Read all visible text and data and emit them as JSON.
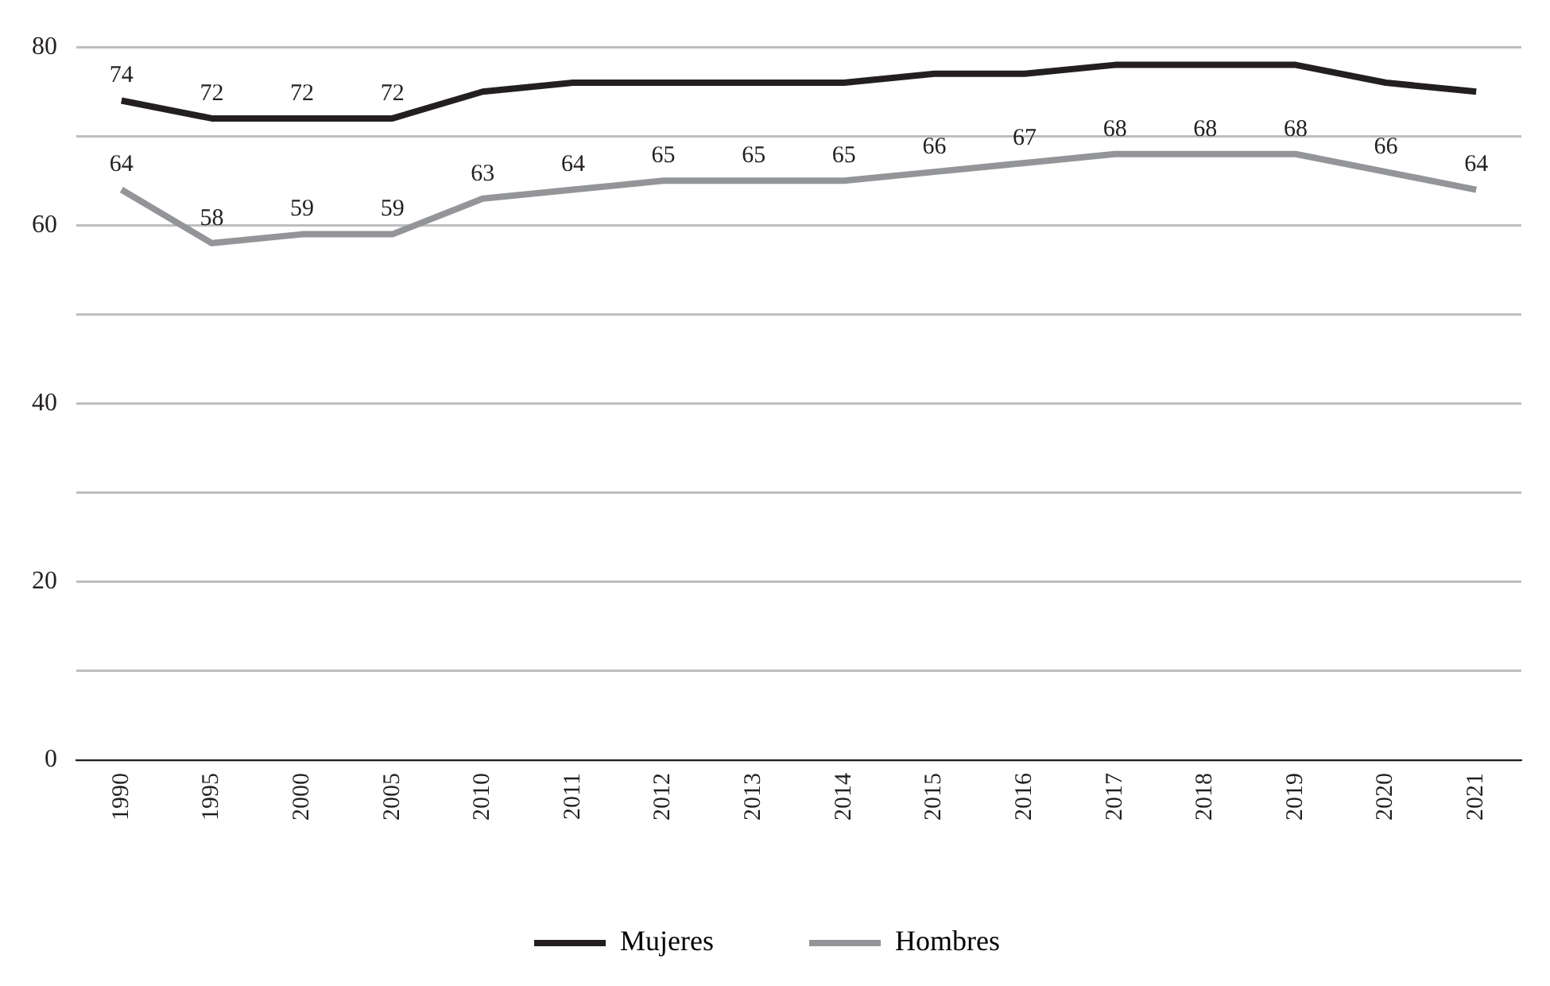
{
  "chart_data": {
    "type": "line",
    "categories": [
      "1990",
      "1995",
      "2000",
      "2005",
      "2010",
      "2011",
      "2012",
      "2013",
      "2014",
      "2015",
      "2016",
      "2017",
      "2018",
      "2019",
      "2020",
      "2021"
    ],
    "series": [
      {
        "name": "Mujeres",
        "color": "#231f20",
        "values": [
          74,
          72,
          72,
          72,
          75,
          76,
          76,
          76,
          76,
          77,
          77,
          78,
          78,
          78,
          76,
          75
        ],
        "value_labels": [
          "74",
          "72",
          "72",
          "72",
          null,
          null,
          null,
          null,
          null,
          null,
          null,
          null,
          null,
          null,
          null,
          null
        ]
      },
      {
        "name": "Hombres",
        "color": "#939598",
        "values": [
          64,
          58,
          59,
          59,
          63,
          64,
          65,
          65,
          65,
          66,
          67,
          68,
          68,
          68,
          66,
          64
        ],
        "value_labels": [
          "64",
          "58",
          "59",
          "59",
          "63",
          "64",
          "65",
          "65",
          "65",
          "66",
          "67",
          "68",
          "68",
          "68",
          "66",
          "64"
        ]
      }
    ],
    "ylim": [
      0,
      80
    ],
    "yticks": [
      0,
      {
        "value": 10,
        "label": null
      },
      20,
      {
        "value": 30,
        "label": null
      },
      40,
      {
        "value": 50,
        "label": null
      },
      60,
      {
        "value": 70,
        "label": null
      },
      80
    ],
    "grid": "y",
    "legend": "bottom",
    "marker": "none",
    "line_style": "solid"
  }
}
